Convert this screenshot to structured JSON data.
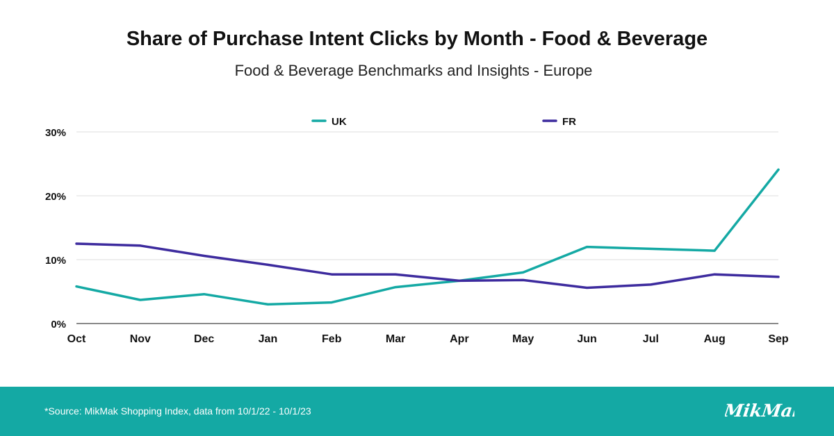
{
  "title": "Share of Purchase Intent Clicks by Month - Food & Beverage",
  "subtitle": "Food & Beverage Benchmarks and Insights - Europe",
  "footer": {
    "source": "*Source: MikMak Shopping Index, data from 10/1/22 - 10/1/23",
    "logo_text": "MikMak",
    "background": "#14a9a4"
  },
  "chart_data": {
    "type": "line",
    "categories": [
      "Oct",
      "Nov",
      "Dec",
      "Jan",
      "Feb",
      "Mar",
      "Apr",
      "May",
      "Jun",
      "Jul",
      "Aug",
      "Sep"
    ],
    "series": [
      {
        "name": "UK",
        "color": "#14a9a4",
        "values": [
          5.8,
          3.7,
          4.6,
          3.0,
          3.3,
          5.7,
          6.7,
          8.0,
          12.0,
          11.7,
          11.4,
          24.1
        ]
      },
      {
        "name": "FR",
        "color": "#3d2b9e",
        "values": [
          12.5,
          12.2,
          10.6,
          9.2,
          7.7,
          7.7,
          6.7,
          6.8,
          5.6,
          6.1,
          7.7,
          7.3
        ]
      }
    ],
    "ylim": [
      0,
      30
    ],
    "yticks": [
      "0%",
      "10%",
      "20%",
      "30%"
    ],
    "ytick_values": [
      0,
      10,
      20,
      30
    ],
    "xlabel": "",
    "ylabel": "",
    "grid": true,
    "legend": "top"
  }
}
